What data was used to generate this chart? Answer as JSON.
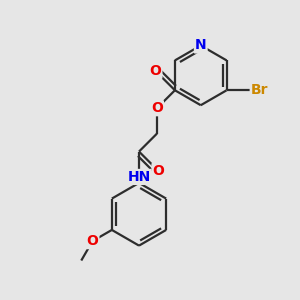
{
  "background_color": "#e6e6e6",
  "bond_color": "#2d2d2d",
  "atom_colors": {
    "N": "#0000ee",
    "O": "#ee0000",
    "Br": "#cc8800",
    "C": "#2d2d2d"
  },
  "bond_width": 1.6,
  "font_size": 10,
  "figsize": [
    3.0,
    3.0
  ],
  "dpi": 100
}
